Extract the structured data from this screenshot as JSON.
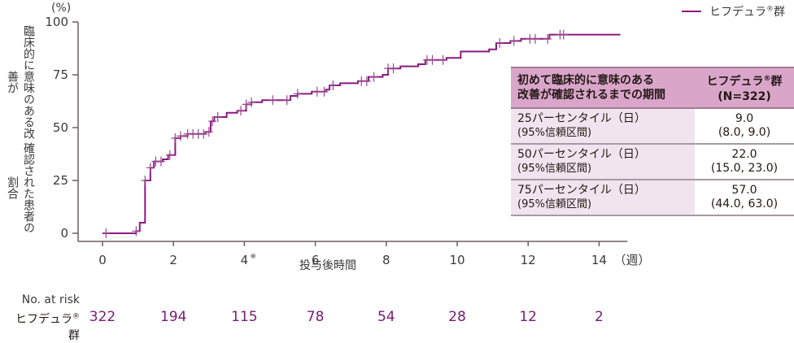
{
  "chart_data": {
    "type": "line",
    "subtype": "kaplan-meier-cumulative-incidence",
    "title": "",
    "xlabel": "投与後時間",
    "x_unit": "（週）",
    "ylabel": "臨床的に意味のある改善が確認された患者の割合",
    "y_unit": "(%)",
    "xlim": [
      0,
      14.8
    ],
    "ylim": [
      0,
      100
    ],
    "x_ticks": [
      "0",
      "2",
      "4※",
      "6",
      "8",
      "10",
      "12",
      "14"
    ],
    "y_ticks": [
      "0",
      "25",
      "50",
      "75",
      "100"
    ],
    "grid": false,
    "legend_position": "top-right",
    "series": [
      {
        "name": "ヒフデュラ®群",
        "color": "#8a1a7e",
        "steps": [
          [
            0.0,
            0
          ],
          [
            0.95,
            1
          ],
          [
            1.05,
            5
          ],
          [
            1.2,
            25
          ],
          [
            1.35,
            31
          ],
          [
            1.45,
            34
          ],
          [
            1.7,
            35
          ],
          [
            1.85,
            37
          ],
          [
            2.05,
            45
          ],
          [
            2.2,
            46
          ],
          [
            2.4,
            47
          ],
          [
            2.9,
            48
          ],
          [
            3.05,
            53
          ],
          [
            3.15,
            55
          ],
          [
            3.5,
            57
          ],
          [
            3.8,
            58
          ],
          [
            4.05,
            61
          ],
          [
            4.2,
            62
          ],
          [
            4.5,
            63
          ],
          [
            5.3,
            65
          ],
          [
            5.5,
            66
          ],
          [
            5.9,
            67
          ],
          [
            6.3,
            68
          ],
          [
            6.4,
            70
          ],
          [
            6.7,
            71
          ],
          [
            7.2,
            72
          ],
          [
            7.5,
            74
          ],
          [
            7.9,
            75
          ],
          [
            8.05,
            78
          ],
          [
            8.4,
            79
          ],
          [
            8.9,
            80
          ],
          [
            9.1,
            82
          ],
          [
            9.7,
            83
          ],
          [
            10.1,
            86
          ],
          [
            10.9,
            87
          ],
          [
            11.1,
            90
          ],
          [
            11.5,
            91
          ],
          [
            11.8,
            92
          ],
          [
            12.2,
            92
          ],
          [
            12.6,
            94
          ],
          [
            14.6,
            94
          ]
        ],
        "censor_x": [
          0.1,
          0.95,
          1.2,
          1.35,
          1.5,
          1.65,
          1.9,
          2.05,
          2.2,
          2.4,
          2.55,
          2.7,
          2.85,
          3.0,
          3.1,
          3.25,
          3.9,
          4.05,
          4.2,
          4.8,
          5.2,
          5.5,
          6.05,
          6.25,
          6.5,
          7.3,
          7.45,
          7.65,
          8.05,
          8.2,
          9.15,
          9.3,
          9.6,
          11.2,
          11.6,
          12.05,
          12.2,
          12.55,
          12.9,
          13.0
        ]
      }
    ],
    "number_at_risk": {
      "label": "No. at risk",
      "group": "ヒフデュラ®群",
      "x": [
        0,
        2,
        4,
        6,
        8,
        10,
        12,
        14
      ],
      "values": [
        322,
        194,
        115,
        78,
        54,
        28,
        12,
        2
      ]
    }
  },
  "legend": {
    "label_main": "ヒフデュラ",
    "label_sup": "®",
    "label_tail": "群"
  },
  "axes": {
    "y_unit": "(%)",
    "y_label_line1": "臨床的に意味のある改善が",
    "y_label_line2": "確認された患者の割合",
    "x_label": "投与後時間",
    "x_unit": "（週）"
  },
  "risk": {
    "title": "No. at risk",
    "group_main": "ヒフデュラ",
    "group_sup": "®",
    "group_tail": "群",
    "values": [
      "322",
      "194",
      "115",
      "78",
      "54",
      "28",
      "12",
      "2"
    ]
  },
  "table": {
    "header_col1_line1": "初めて臨床的に意味のある",
    "header_col1_line2": "改善が確認されるまでの期間",
    "header_col2_main": "ヒフデュラ",
    "header_col2_sup": "®",
    "header_col2_tail": "群",
    "header_col2_n": "(N=322)",
    "rows": [
      {
        "label": "25パーセンタイル（日）",
        "sublabel": "(95%信頼区間)",
        "value": "9.0",
        "ci": "(8.0, 9.0)"
      },
      {
        "label": "50パーセンタイル（日）",
        "sublabel": "(95%信頼区間)",
        "value": "22.0",
        "ci": "(15.0, 23.0)"
      },
      {
        "label": "75パーセンタイル（日）",
        "sublabel": "(95%信頼区間)",
        "value": "57.0",
        "ci": "(44.0, 63.0)"
      }
    ]
  }
}
